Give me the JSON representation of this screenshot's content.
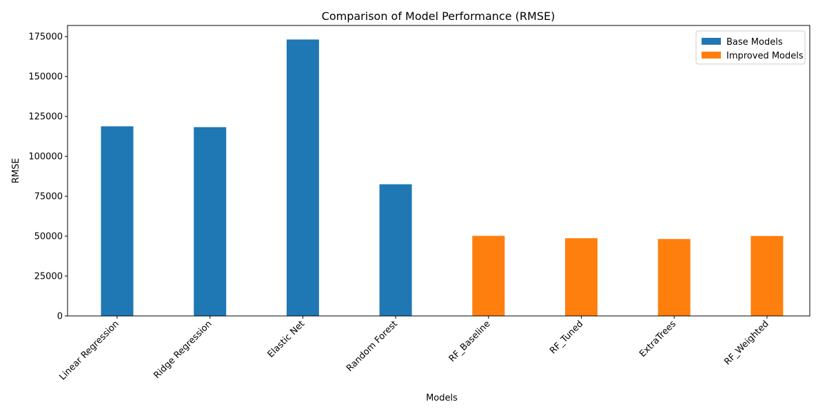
{
  "chart_data": {
    "type": "bar",
    "title": "Comparison of Model Performance (RMSE)",
    "xlabel": "Models",
    "ylabel": "RMSE",
    "ylim": [
      0,
      182000
    ],
    "yticks": [
      0,
      25000,
      50000,
      75000,
      100000,
      125000,
      150000,
      175000
    ],
    "categories": [
      "Linear Regression",
      "Ridge Regression",
      "Elastic Net",
      "Random Forest",
      "RF_Baseline",
      "RF_Tuned",
      "ExtraTrees",
      "RF_Weighted"
    ],
    "series": [
      {
        "name": "Base Models",
        "color": "#1f77b4",
        "values": [
          118800,
          118300,
          173200,
          82500,
          null,
          null,
          null,
          null
        ]
      },
      {
        "name": "Improved Models",
        "color": "#ff7f0e",
        "values": [
          null,
          null,
          null,
          null,
          50200,
          48700,
          48200,
          50100
        ]
      }
    ],
    "legend_position": "top-right",
    "grid": false
  }
}
